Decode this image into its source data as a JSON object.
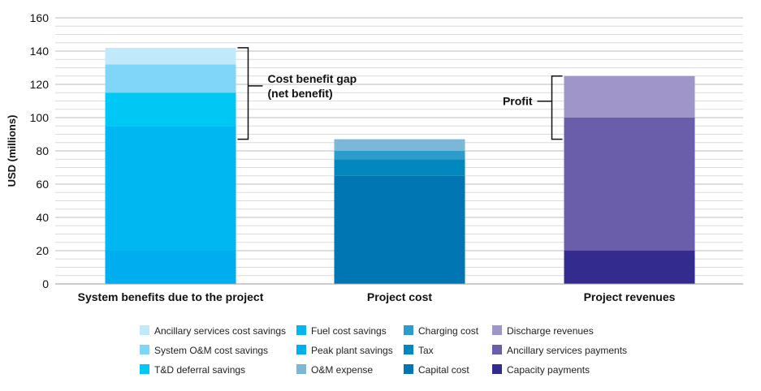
{
  "chart_data": {
    "type": "bar",
    "stacked": true,
    "title": "",
    "xlabel": "",
    "ylabel": "USD (millions)",
    "ylim": [
      0,
      160
    ],
    "yticks": [
      0,
      20,
      40,
      60,
      80,
      100,
      120,
      140,
      160
    ],
    "grid": true,
    "legend_position": "bottom",
    "categories": [
      "System benefits due to the project",
      "Project cost",
      "Project revenues"
    ],
    "series": [
      {
        "name": "Peak plant savings",
        "color": "#00adee",
        "values": [
          20,
          0,
          0
        ]
      },
      {
        "name": "Fuel cost savings",
        "color": "#00b7f1",
        "values": [
          75,
          0,
          0
        ]
      },
      {
        "name": "T&D deferral savings",
        "color": "#00c8f4",
        "values": [
          20,
          0,
          0
        ]
      },
      {
        "name": "System O&M cost savings",
        "color": "#7fd6f7",
        "values": [
          17,
          0,
          0
        ]
      },
      {
        "name": "Ancillary services cost savings",
        "color": "#c0e9fb",
        "values": [
          10,
          0,
          0
        ]
      },
      {
        "name": "Capital cost",
        "color": "#0077b2",
        "values": [
          0,
          65,
          0
        ]
      },
      {
        "name": "Tax",
        "color": "#0088bf",
        "values": [
          0,
          10,
          0
        ]
      },
      {
        "name": "Charging cost",
        "color": "#2b9ccc",
        "values": [
          0,
          5,
          0
        ]
      },
      {
        "name": "O&M expense",
        "color": "#7db7d8",
        "values": [
          0,
          7,
          0
        ]
      },
      {
        "name": "Capacity payments",
        "color": "#332c8e",
        "values": [
          0,
          0,
          20
        ]
      },
      {
        "name": "Ancillary services payments",
        "color": "#6a5eab",
        "values": [
          0,
          0,
          80
        ]
      },
      {
        "name": "Discharge revenues",
        "color": "#9f95c8",
        "values": [
          0,
          0,
          25
        ]
      }
    ],
    "annotations": [
      {
        "text_lines": [
          "Cost benefit gap",
          "(net benefit)"
        ],
        "category": 0,
        "from": 87,
        "to": 142,
        "side": "right"
      },
      {
        "text_lines": [
          "Profit"
        ],
        "category": 2,
        "from": 87,
        "to": 125,
        "side": "left"
      }
    ],
    "legend_columns": [
      [
        "Ancillary services cost savings",
        "System O&M cost savings",
        "T&D deferral savings"
      ],
      [
        "Fuel cost savings",
        "Peak plant savings",
        "O&M expense"
      ],
      [
        "Charging cost",
        "Tax",
        "Capital cost"
      ],
      [
        "Discharge revenues",
        "Ancillary services payments",
        "Capacity payments"
      ]
    ]
  }
}
